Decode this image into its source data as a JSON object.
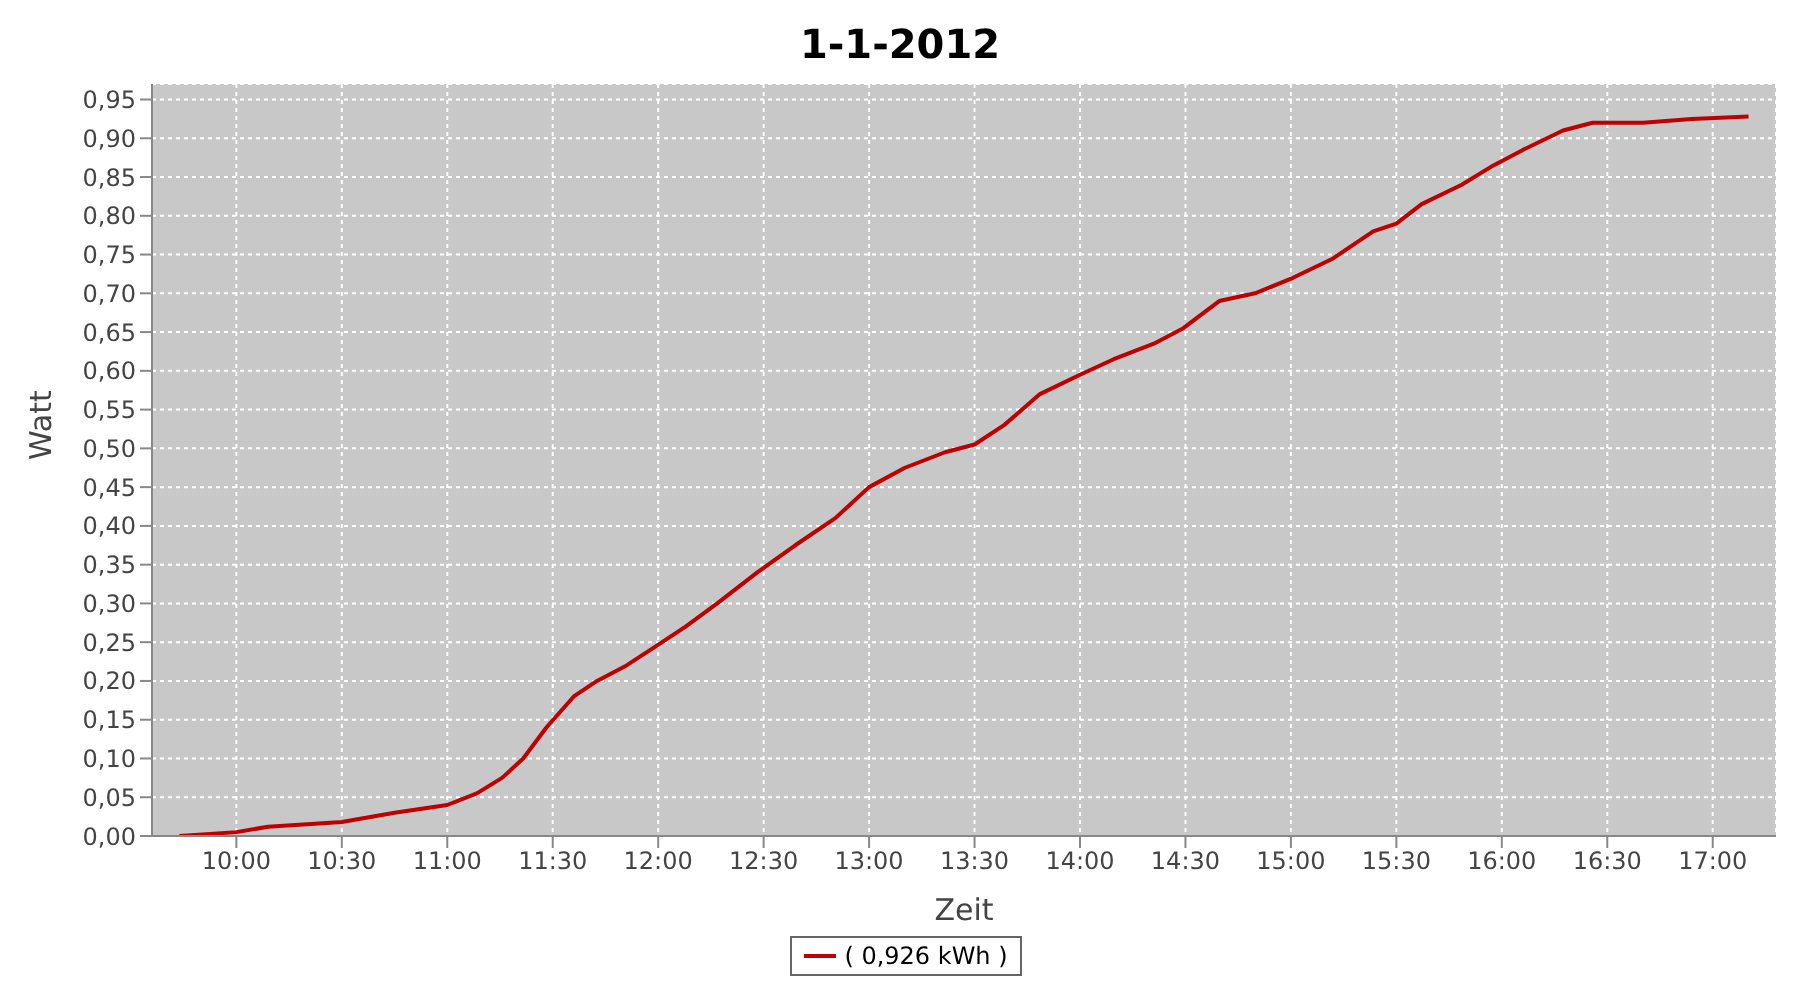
{
  "chart_data": {
    "type": "line",
    "title": "1-1-2012",
    "xlabel": "Zeit",
    "ylabel": "Watt",
    "x": [
      9.73,
      10.0,
      10.15,
      10.5,
      10.75,
      11.0,
      11.14,
      11.26,
      11.36,
      11.47,
      11.6,
      11.71,
      11.85,
      11.99,
      12.13,
      12.28,
      12.47,
      12.65,
      12.84,
      13.0,
      13.17,
      13.36,
      13.5,
      13.64,
      13.81,
      14.0,
      14.16,
      14.35,
      14.49,
      14.66,
      14.83,
      15.01,
      15.2,
      15.39,
      15.5,
      15.62,
      15.81,
      15.96,
      16.1,
      16.29,
      16.43,
      16.67,
      16.9,
      17.17
    ],
    "series": [
      {
        "name": "( 0,926 kWh )",
        "color": "#c00000",
        "values": [
          0,
          0.005,
          0.012,
          0.018,
          0.03,
          0.04,
          0.055,
          0.075,
          0.1,
          0.14,
          0.18,
          0.2,
          0.22,
          0.245,
          0.27,
          0.3,
          0.34,
          0.375,
          0.41,
          0.45,
          0.475,
          0.495,
          0.505,
          0.53,
          0.57,
          0.595,
          0.615,
          0.635,
          0.655,
          0.69,
          0.7,
          0.72,
          0.745,
          0.78,
          0.79,
          0.815,
          0.84,
          0.865,
          0.885,
          0.91,
          0.92,
          0.92,
          0.925,
          0.928
        ]
      }
    ],
    "xlim": [
      9.6,
      17.3
    ],
    "xticks": [
      {
        "value": 10,
        "label": "10:00"
      },
      {
        "value": 10.5,
        "label": "10:30"
      },
      {
        "value": 11,
        "label": "11:00"
      },
      {
        "value": 11.5,
        "label": "11:30"
      },
      {
        "value": 12,
        "label": "12:00"
      },
      {
        "value": 12.5,
        "label": "12:30"
      },
      {
        "value": 13,
        "label": "13:00"
      },
      {
        "value": 13.5,
        "label": "13:30"
      },
      {
        "value": 14,
        "label": "14:00"
      },
      {
        "value": 14.5,
        "label": "14:30"
      },
      {
        "value": 15,
        "label": "15:00"
      },
      {
        "value": 15.5,
        "label": "15:30"
      },
      {
        "value": 16,
        "label": "16:00"
      },
      {
        "value": 16.5,
        "label": "16:30"
      },
      {
        "value": 17,
        "label": "17:00"
      }
    ],
    "ylim": [
      0,
      0.97
    ],
    "yticks": [
      {
        "value": 0,
        "label": "0,00"
      },
      {
        "value": 0.05,
        "label": "0,05"
      },
      {
        "value": 0.1,
        "label": "0,10"
      },
      {
        "value": 0.15,
        "label": "0,15"
      },
      {
        "value": 0.2,
        "label": "0,20"
      },
      {
        "value": 0.25,
        "label": "0,25"
      },
      {
        "value": 0.3,
        "label": "0,30"
      },
      {
        "value": 0.35,
        "label": "0,35"
      },
      {
        "value": 0.4,
        "label": "0,40"
      },
      {
        "value": 0.45,
        "label": "0,45"
      },
      {
        "value": 0.5,
        "label": "0,50"
      },
      {
        "value": 0.55,
        "label": "0,55"
      },
      {
        "value": 0.6,
        "label": "0,60"
      },
      {
        "value": 0.65,
        "label": "0,65"
      },
      {
        "value": 0.7,
        "label": "0,70"
      },
      {
        "value": 0.75,
        "label": "0,75"
      },
      {
        "value": 0.8,
        "label": "0,80"
      },
      {
        "value": 0.85,
        "label": "0,85"
      },
      {
        "value": 0.9,
        "label": "0,90"
      },
      {
        "value": 0.95,
        "label": "0,95"
      }
    ],
    "grid": true,
    "legend": "bottom",
    "marker": "none",
    "line_style": "solid"
  }
}
